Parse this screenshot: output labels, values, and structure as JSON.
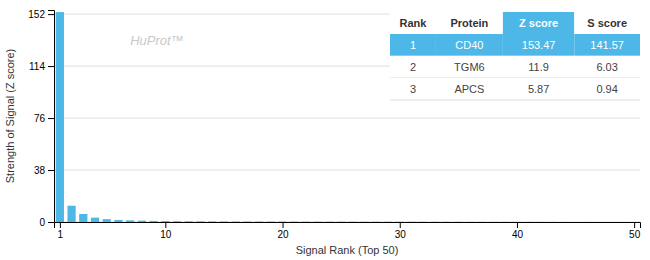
{
  "chart_data": {
    "type": "bar",
    "x": [
      1,
      2,
      3,
      4,
      5,
      6,
      7,
      8,
      9,
      10,
      11,
      12,
      13,
      14,
      15,
      16,
      17,
      18,
      19,
      20,
      21,
      22,
      23,
      24,
      25,
      26,
      27,
      28,
      29,
      30,
      31,
      32,
      33,
      34,
      35,
      36,
      37,
      38,
      39,
      40,
      41,
      42,
      43,
      44,
      45,
      46,
      47,
      48,
      49,
      50
    ],
    "values": [
      153.47,
      11.9,
      5.87,
      3.2,
      2.1,
      1.5,
      1.2,
      1.0,
      0.8,
      0.7,
      0.6,
      0.55,
      0.5,
      0.45,
      0.42,
      0.4,
      0.38,
      0.36,
      0.34,
      0.32,
      0.3,
      0.28,
      0.27,
      0.26,
      0.25,
      0.24,
      0.23,
      0.22,
      0.21,
      0.2,
      0.19,
      0.18,
      0.17,
      0.16,
      0.15,
      0.14,
      0.13,
      0.12,
      0.11,
      0.1,
      0.09,
      0.08,
      0.07,
      0.06,
      0.05,
      0.04,
      0.03,
      0.02,
      0.01,
      0.005
    ],
    "color": "#4db8e8",
    "xlim": [
      0.5,
      50.5
    ],
    "xticks": [
      1,
      10,
      20,
      30,
      40,
      50
    ],
    "ylim": [
      0,
      155
    ],
    "yticks": [
      0,
      38,
      76,
      114,
      152
    ],
    "grid": true,
    "xlabel": "Signal Rank (Top 50)",
    "ylabel": "Strength of Signal (Z score)",
    "annotations": [
      "HuProt™"
    ],
    "table": {
      "headers": [
        "Rank",
        "Protein",
        "Z score",
        "S score"
      ],
      "rows": [
        [
          "1",
          "CD40",
          "153.47",
          "141.57"
        ],
        [
          "2",
          "TGM6",
          "11.9",
          "6.03"
        ],
        [
          "3",
          "APCS",
          "5.87",
          "0.94"
        ]
      ]
    }
  }
}
